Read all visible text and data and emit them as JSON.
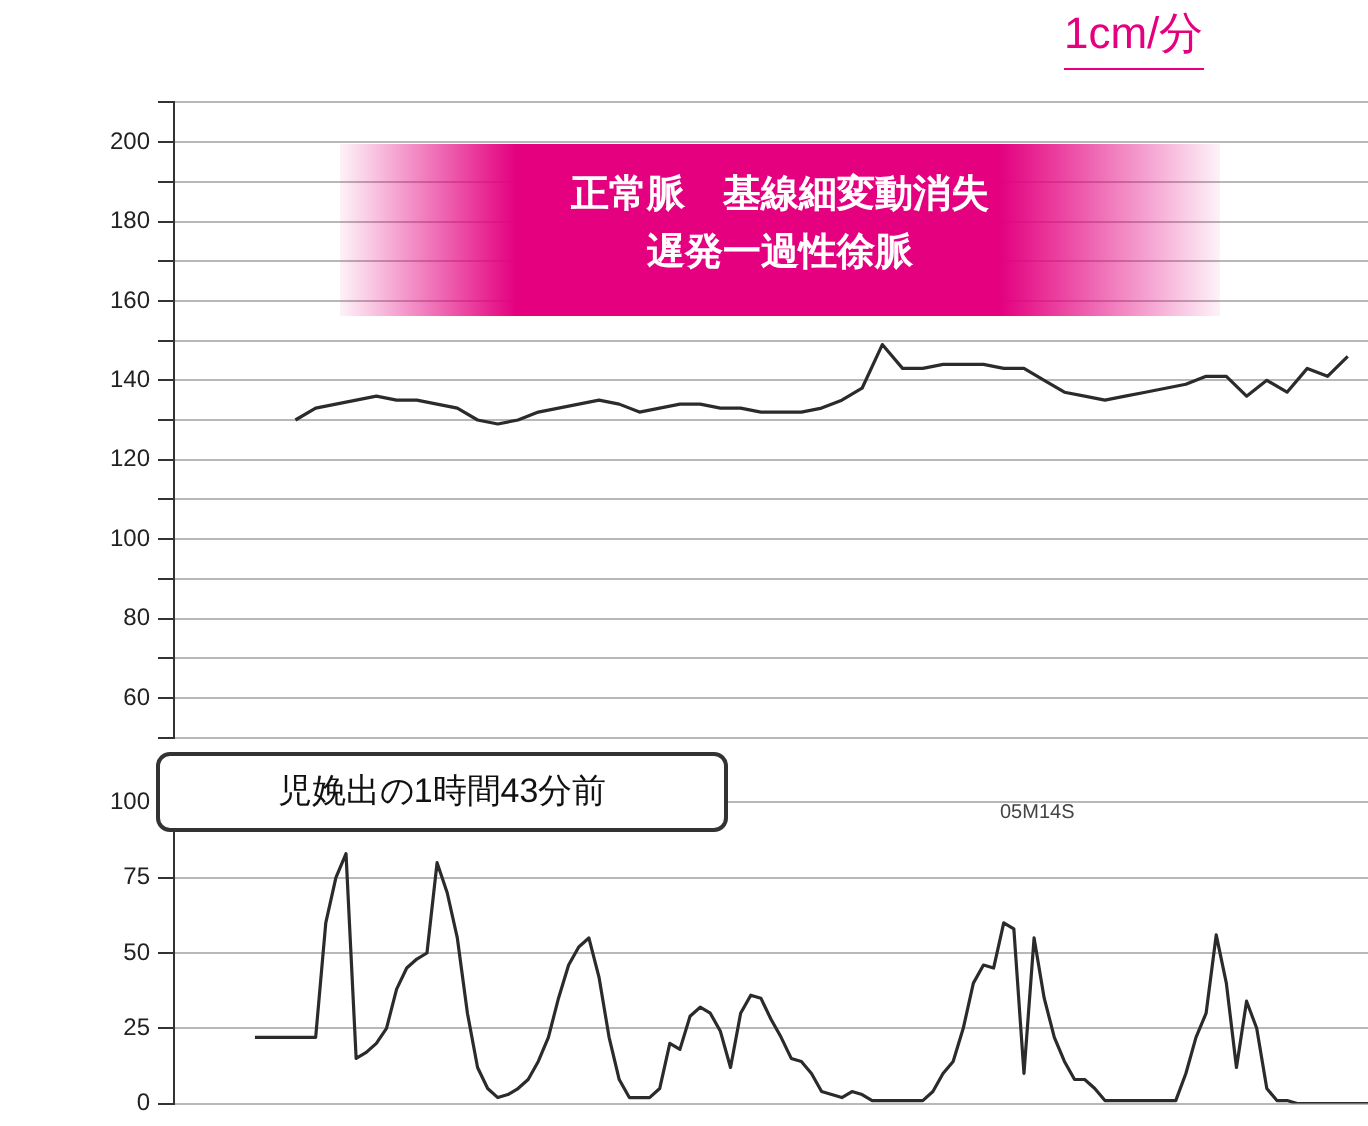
{
  "chart_data": [
    {
      "type": "line",
      "annotations": [
        "正常脈　基線細変動消失",
        "遅発一過性徐脈",
        "1cm/分",
        "児娩出の1時間43分前"
      ],
      "categories": [
        null,
        null,
        null,
        null,
        null,
        null,
        null,
        null,
        null,
        null,
        null,
        null,
        null,
        null,
        null,
        null,
        null,
        null,
        null,
        null,
        null,
        null,
        null,
        null,
        null,
        null,
        null,
        null,
        null,
        null,
        null,
        null,
        null,
        null,
        null,
        null,
        null,
        null,
        null,
        null,
        null,
        null,
        null,
        null,
        null,
        null,
        null,
        null,
        null,
        null,
        null,
        null,
        null,
        null,
        null,
        null,
        null,
        null,
        null,
        null
      ],
      "series": [
        {
          "color": "#2b2b2b",
          "values": [
            null,
            null,
            null,
            null,
            null,
            null,
            130,
            133,
            134,
            135,
            136,
            135,
            135,
            134,
            133,
            130,
            129,
            130,
            132,
            133,
            134,
            135,
            134,
            132,
            133,
            134,
            134,
            133,
            133,
            132,
            132,
            132,
            133,
            135,
            138,
            149,
            143,
            143,
            144,
            144,
            144,
            143,
            143,
            140,
            137,
            136,
            135,
            136,
            137,
            138,
            139,
            141,
            141,
            136,
            140,
            137,
            143,
            141,
            146,
            null
          ]
        }
      ],
      "ylim": [
        50,
        210
      ],
      "yticks": [
        {
          "value": 50,
          "label": null
        },
        60,
        {
          "value": 70,
          "label": null
        },
        80,
        {
          "value": 90,
          "label": null
        },
        100,
        {
          "value": 110,
          "label": null
        },
        120,
        {
          "value": 130,
          "label": null
        },
        140,
        {
          "value": 150,
          "label": null
        },
        160,
        {
          "value": 170,
          "label": null
        },
        180,
        {
          "value": 190,
          "label": null
        },
        200,
        {
          "value": 210,
          "label": null
        }
      ],
      "grid": "y",
      "tick_labels": "y",
      "legend": false
    },
    {
      "type": "line",
      "annotations": [
        "05M14S"
      ],
      "categories": [
        null,
        null,
        null,
        null,
        null,
        null,
        null,
        null,
        null,
        null,
        null,
        null,
        null,
        null,
        null,
        null,
        null,
        null,
        null,
        null,
        null,
        null,
        null,
        null,
        null,
        null,
        null,
        null,
        null,
        null,
        null,
        null,
        null,
        null,
        null,
        null,
        null,
        null,
        null,
        null,
        null,
        null,
        null,
        null,
        null,
        null,
        null,
        null,
        null,
        null,
        null,
        null,
        null,
        null,
        null,
        null,
        null,
        null,
        null,
        null,
        null,
        null,
        null,
        null,
        null,
        null,
        null,
        null,
        null,
        null,
        null,
        null,
        null,
        null,
        null,
        null,
        null,
        null,
        null,
        null,
        null,
        null,
        null,
        null,
        null,
        null,
        null,
        null,
        null,
        null,
        null,
        null,
        null,
        null,
        null,
        null,
        null,
        null,
        null,
        null,
        null,
        null,
        null,
        null,
        null,
        null,
        null,
        null,
        null,
        null,
        null,
        null,
        null,
        null,
        null,
        null,
        null,
        null,
        null
      ],
      "series": [
        {
          "color": "#2b2b2b",
          "values": [
            null,
            null,
            null,
            null,
            null,
            null,
            null,
            null,
            22,
            22,
            22,
            22,
            22,
            22,
            22,
            60,
            75,
            83,
            15,
            17,
            20,
            25,
            38,
            45,
            48,
            50,
            80,
            70,
            55,
            30,
            12,
            5,
            2,
            3,
            5,
            8,
            14,
            22,
            35,
            46,
            52,
            55,
            42,
            22,
            8,
            2,
            2,
            2,
            5,
            20,
            18,
            29,
            32,
            30,
            24,
            12,
            30,
            36,
            35,
            28,
            22,
            15,
            14,
            10,
            4,
            3,
            2,
            4,
            3,
            1,
            1,
            1,
            1,
            1,
            1,
            4,
            10,
            14,
            25,
            40,
            46,
            45,
            60,
            58,
            10,
            55,
            35,
            22,
            14,
            8,
            8,
            5,
            1,
            1,
            1,
            1,
            1,
            1,
            1,
            1,
            10,
            22,
            30,
            56,
            40,
            12,
            34,
            25,
            5,
            1,
            1,
            0,
            0,
            0,
            0,
            0,
            0,
            0,
            0
          ]
        }
      ],
      "ylim": [
        0,
        100
      ],
      "yticks": [
        0,
        25,
        50,
        75,
        100
      ],
      "grid": "y",
      "tick_labels": "y",
      "legend": false
    }
  ]
}
